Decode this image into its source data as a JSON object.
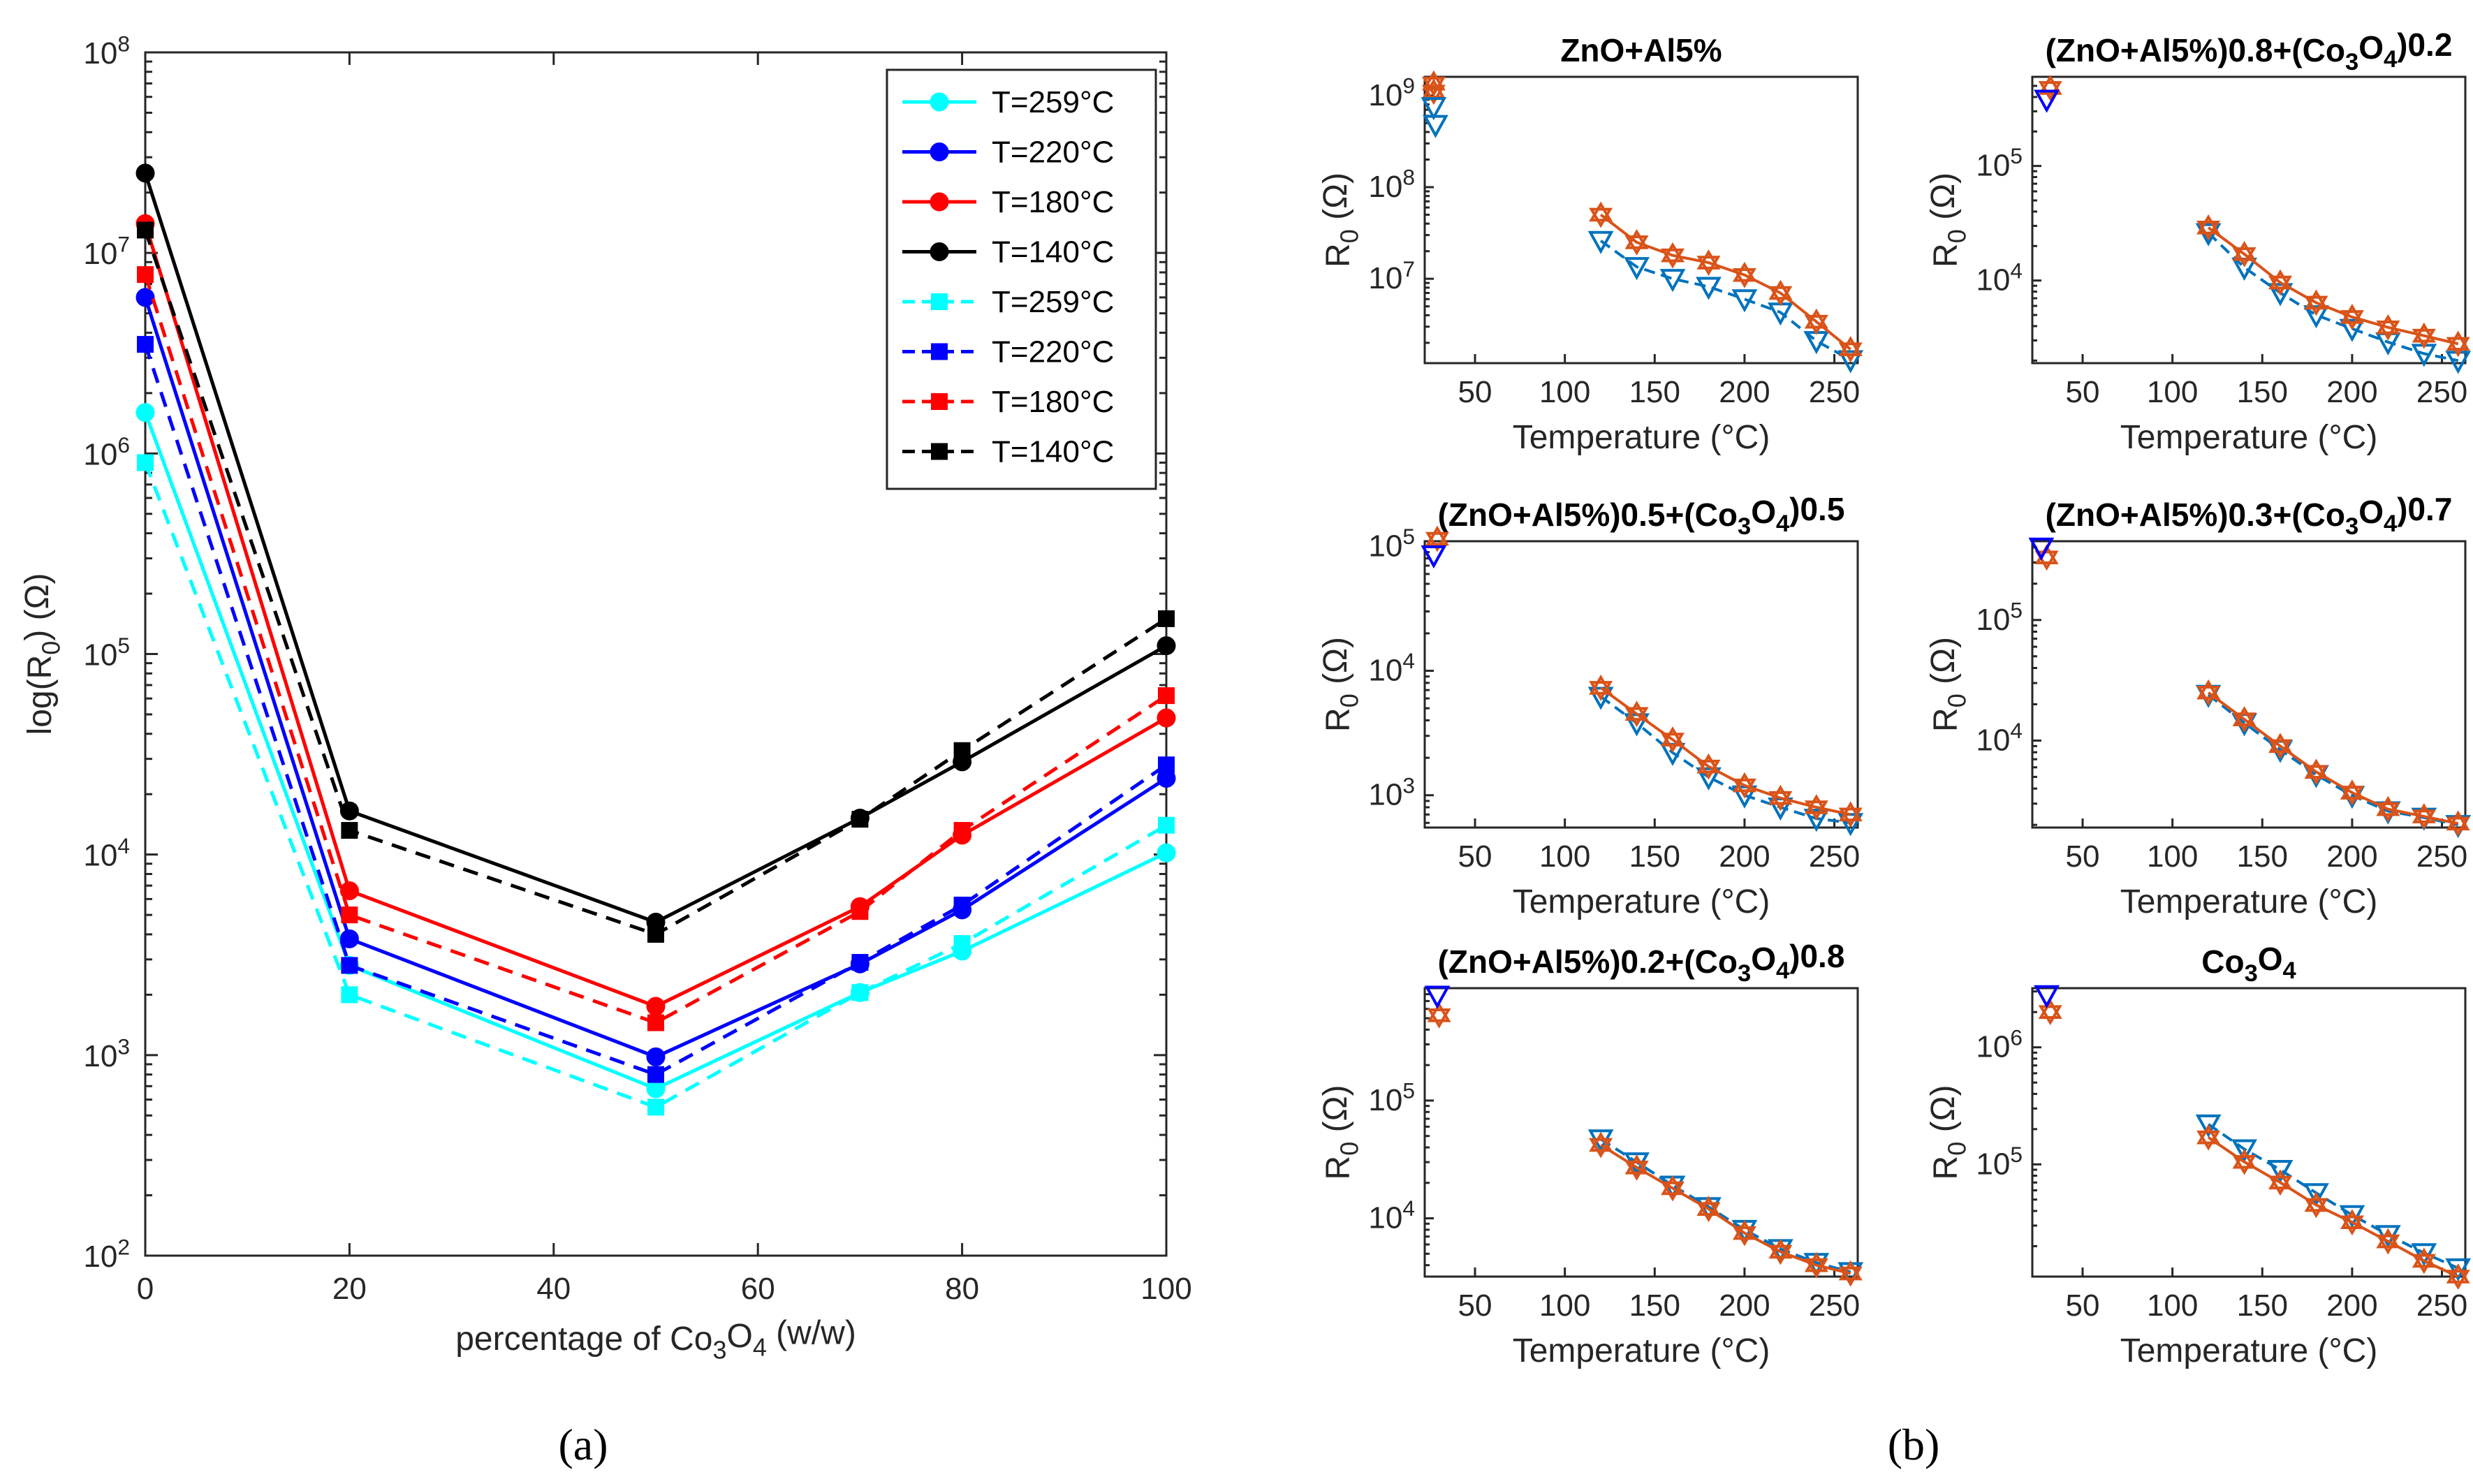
{
  "panel_labels": {
    "a": "(a)",
    "b": "(b)"
  },
  "chart_data": [
    {
      "id": "main",
      "type": "line",
      "yscale": "log",
      "xlabel": "percentage of Co3O4 (w/w)",
      "ylabel": "log(R0) (Ω)",
      "xlim": [
        0,
        100
      ],
      "ylim": [
        100,
        100000000
      ],
      "xticks": [
        0,
        20,
        40,
        60,
        80,
        100
      ],
      "yticks": [
        100,
        1000,
        10000,
        100000,
        1000000,
        10000000,
        100000000
      ],
      "legend_position": "top-right",
      "x": [
        0,
        20,
        50,
        70,
        80,
        100
      ],
      "series": [
        {
          "name": "T=259°C",
          "color": "#00FFFF",
          "style": "solid",
          "marker": "circle",
          "values": [
            1600000,
            2800,
            680,
            2050,
            3300,
            10200
          ]
        },
        {
          "name": "T=220°C",
          "color": "#0000FF",
          "style": "solid",
          "marker": "circle",
          "values": [
            6000000,
            3800,
            980,
            2850,
            5300,
            24000
          ]
        },
        {
          "name": "T=180°C",
          "color": "#FF0000",
          "style": "solid",
          "marker": "circle",
          "values": [
            14000000,
            6600,
            1750,
            5500,
            12500,
            48000
          ]
        },
        {
          "name": "T=140°C",
          "color": "#000000",
          "style": "solid",
          "marker": "circle",
          "values": [
            25000000,
            16500,
            4600,
            15200,
            29000,
            110000
          ]
        },
        {
          "name": "T=259°C",
          "color": "#00FFFF",
          "style": "dashed",
          "marker": "square",
          "values": [
            900000,
            2000,
            550,
            2050,
            3600,
            14000
          ]
        },
        {
          "name": "T=220°C",
          "color": "#0000FF",
          "style": "dashed",
          "marker": "square",
          "values": [
            3500000,
            2800,
            800,
            2900,
            5600,
            28000
          ]
        },
        {
          "name": "T=180°C",
          "color": "#FF0000",
          "style": "dashed",
          "marker": "square",
          "values": [
            7800000,
            5000,
            1450,
            5200,
            13200,
            62000
          ]
        },
        {
          "name": "T=140°C",
          "color": "#000000",
          "style": "dashed",
          "marker": "square",
          "values": [
            13000000,
            13200,
            4000,
            15000,
            33000,
            150000
          ]
        }
      ]
    },
    {
      "id": "b1",
      "type": "line",
      "yscale": "log",
      "title": "ZnO+Al5%",
      "xlabel": "Temperature (°C)",
      "ylabel": "R0 (Ω)",
      "xlim": [
        22,
        263
      ],
      "ylim": [
        1200000,
        1600000000
      ],
      "xticks": [
        50,
        100,
        150,
        200,
        250
      ],
      "yticks": [
        10000000,
        100000000,
        1000000000
      ],
      "x": [
        120,
        140,
        160,
        180,
        200,
        220,
        240,
        259
      ],
      "series": [
        {
          "name": "triangle",
          "color": "#0072BD",
          "marker": "triangle-down",
          "values": [
            26000000,
            13500000,
            10000000,
            8200000,
            6000000,
            4300000,
            2100000,
            1300000
          ]
        },
        {
          "name": "star",
          "color": "#D95319",
          "marker": "hexagram",
          "values": [
            50000000,
            25000000,
            18000000,
            15000000,
            11000000,
            7000000,
            3400000,
            1700000
          ]
        }
      ],
      "extra_points": [
        {
          "x": 27,
          "value": 1100000000,
          "series": "star"
        },
        {
          "x": 27,
          "value": 1350000000,
          "series": "star"
        },
        {
          "x": 27,
          "value": 750000000,
          "series": "triangle"
        },
        {
          "x": 28,
          "value": 480000000,
          "series": "triangle"
        }
      ]
    },
    {
      "id": "b2",
      "type": "line",
      "yscale": "log",
      "title": "(ZnO+Al5%)0.8+(Co3O4)0.2",
      "xlabel": "Temperature (°C)",
      "ylabel": "R0 (Ω)",
      "xlim": [
        22,
        263
      ],
      "ylim": [
        1900,
        600000
      ],
      "xticks": [
        50,
        100,
        150,
        200,
        250
      ],
      "yticks": [
        10000,
        100000
      ],
      "x": [
        120,
        140,
        160,
        180,
        200,
        220,
        240,
        259
      ],
      "series": [
        {
          "name": "triangle",
          "color": "#0072BD",
          "marker": "triangle-down",
          "values": [
            26000,
            13000,
            7800,
            5000,
            3800,
            2900,
            2300,
            2000
          ]
        },
        {
          "name": "star",
          "color": "#D95319",
          "marker": "hexagram",
          "values": [
            29000,
            17000,
            9600,
            6400,
            4800,
            3900,
            3300,
            2800
          ]
        }
      ],
      "extra_points": [
        {
          "x": 32,
          "value": 480000,
          "series": "star"
        },
        {
          "x": 30,
          "value": 380000,
          "series": "triangle"
        }
      ]
    },
    {
      "id": "b3",
      "type": "line",
      "yscale": "log",
      "title": "(ZnO+Al5%)0.5+(Co3O4)0.5",
      "xlabel": "Temperature (°C)",
      "ylabel": "R0 (Ω)",
      "xlim": [
        22,
        263
      ],
      "ylim": [
        550,
        110000
      ],
      "xticks": [
        50,
        100,
        150,
        200,
        250
      ],
      "yticks": [
        1000,
        10000,
        100000
      ],
      "x": [
        120,
        140,
        160,
        180,
        200,
        220,
        240,
        259
      ],
      "series": [
        {
          "name": "triangle",
          "color": "#0072BD",
          "marker": "triangle-down",
          "values": [
            6200,
            3800,
            2200,
            1400,
            1000,
            800,
            650,
            600
          ]
        },
        {
          "name": "star",
          "color": "#D95319",
          "marker": "hexagram",
          "values": [
            7300,
            4500,
            2800,
            1700,
            1200,
            950,
            800,
            700
          ]
        }
      ],
      "extra_points": [
        {
          "x": 29,
          "value": 115000,
          "series": "star"
        },
        {
          "x": 27,
          "value": 85000,
          "series": "triangle"
        }
      ]
    },
    {
      "id": "b4",
      "type": "line",
      "yscale": "log",
      "title": "(ZnO+Al5%)0.3+(Co3O4)0.7",
      "xlabel": "Temperature (°C)",
      "ylabel": "R0 (Ω)",
      "xlim": [
        22,
        263
      ],
      "ylim": [
        1900,
        450000
      ],
      "xticks": [
        50,
        100,
        150,
        200,
        250
      ],
      "yticks": [
        10000,
        100000
      ],
      "x": [
        120,
        140,
        160,
        180,
        200,
        220,
        240,
        259
      ],
      "series": [
        {
          "name": "triangle",
          "color": "#0072BD",
          "marker": "triangle-down",
          "values": [
            24000,
            14000,
            8400,
            5200,
            3500,
            2600,
            2300,
            2000
          ]
        },
        {
          "name": "star",
          "color": "#D95319",
          "marker": "hexagram",
          "values": [
            25000,
            15000,
            9000,
            5500,
            3700,
            2700,
            2350,
            2050
          ]
        }
      ],
      "extra_points": [
        {
          "x": 30,
          "value": 330000,
          "series": "star"
        },
        {
          "x": 27,
          "value": 400000,
          "series": "triangle"
        }
      ]
    },
    {
      "id": "b5",
      "type": "line",
      "yscale": "log",
      "title": "(ZnO+Al5%)0.2+(Co3O4)0.8",
      "xlabel": "Temperature (°C)",
      "ylabel": "R0 (Ω)",
      "xlim": [
        22,
        263
      ],
      "ylim": [
        3200,
        900000
      ],
      "xticks": [
        50,
        100,
        150,
        200,
        250
      ],
      "yticks": [
        10000,
        100000
      ],
      "x": [
        120,
        140,
        160,
        180,
        200,
        220,
        240,
        259
      ],
      "series": [
        {
          "name": "triangle",
          "color": "#0072BD",
          "marker": "triangle-down",
          "values": [
            47000,
            30000,
            19000,
            12500,
            8000,
            5500,
            4200,
            3500
          ]
        },
        {
          "name": "star",
          "color": "#D95319",
          "marker": "hexagram",
          "values": [
            42000,
            27000,
            18000,
            12000,
            7500,
            5200,
            4000,
            3400
          ]
        }
      ],
      "extra_points": [
        {
          "x": 30,
          "value": 530000,
          "series": "star"
        },
        {
          "x": 29,
          "value": 780000,
          "series": "triangle"
        }
      ]
    },
    {
      "id": "b6",
      "type": "line",
      "yscale": "log",
      "title": "Co3O4",
      "xlabel": "Temperature (°C)",
      "ylabel": "R0 (Ω)",
      "xlim": [
        22,
        263
      ],
      "ylim": [
        11000,
        3200000
      ],
      "xticks": [
        50,
        100,
        150,
        200,
        250
      ],
      "yticks": [
        100000,
        1000000
      ],
      "x": [
        120,
        140,
        160,
        180,
        200,
        220,
        240,
        259
      ],
      "series": [
        {
          "name": "triangle",
          "color": "#0072BD",
          "marker": "triangle-down",
          "values": [
            220000,
            135000,
            90000,
            57000,
            37000,
            25000,
            17500,
            13000
          ]
        },
        {
          "name": "star",
          "color": "#D95319",
          "marker": "hexagram",
          "values": [
            170000,
            105000,
            70000,
            45000,
            32000,
            22000,
            15000,
            11000
          ]
        }
      ],
      "extra_points": [
        {
          "x": 32,
          "value": 2000000,
          "series": "star"
        },
        {
          "x": 30,
          "value": 2800000,
          "series": "triangle"
        }
      ]
    }
  ]
}
